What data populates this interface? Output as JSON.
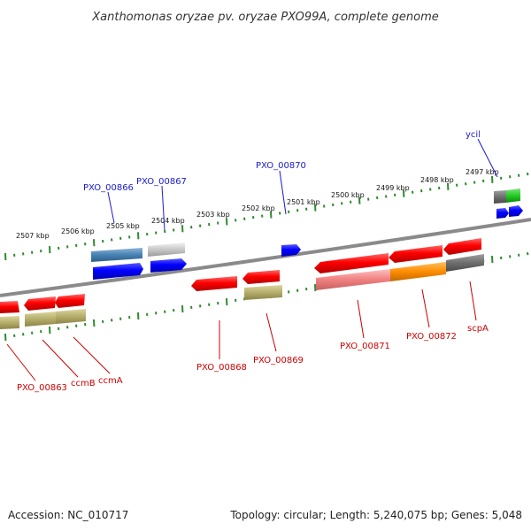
{
  "title": "Xanthomonas oryzae pv. oryzae PXO99A, complete genome",
  "footer": {
    "accession": "Accession: NC_010717",
    "summary": "Topology: circular; Length: 5,240,075 bp; Genes: 5,048"
  },
  "colors": {
    "backbone": "#8a8a8a",
    "tick": "#2e8b2e",
    "forward_label": "#1a1acc",
    "reverse_label": "#cc0000"
  },
  "scale_ticks": [
    "2507 kbp",
    "2506 kbp",
    "2505 kbp",
    "2504 kbp",
    "2503 kbp",
    "2502 kbp",
    "2501 kbp",
    "2500 kbp",
    "2499 kbp",
    "2498 kbp",
    "2497 kbp"
  ],
  "forward_genes": [
    {
      "name": "PXO_00866"
    },
    {
      "name": "PXO_00867"
    },
    {
      "name": "PXO_00870"
    },
    {
      "name": "ycil"
    }
  ],
  "reverse_genes": [
    {
      "name": "PXO_00863"
    },
    {
      "name": "ccmB"
    },
    {
      "name": "ccmA"
    },
    {
      "name": "PXO_00868"
    },
    {
      "name": "PXO_00869"
    },
    {
      "name": "PXO_00871"
    },
    {
      "name": "PXO_00872"
    },
    {
      "name": "scpA"
    }
  ]
}
